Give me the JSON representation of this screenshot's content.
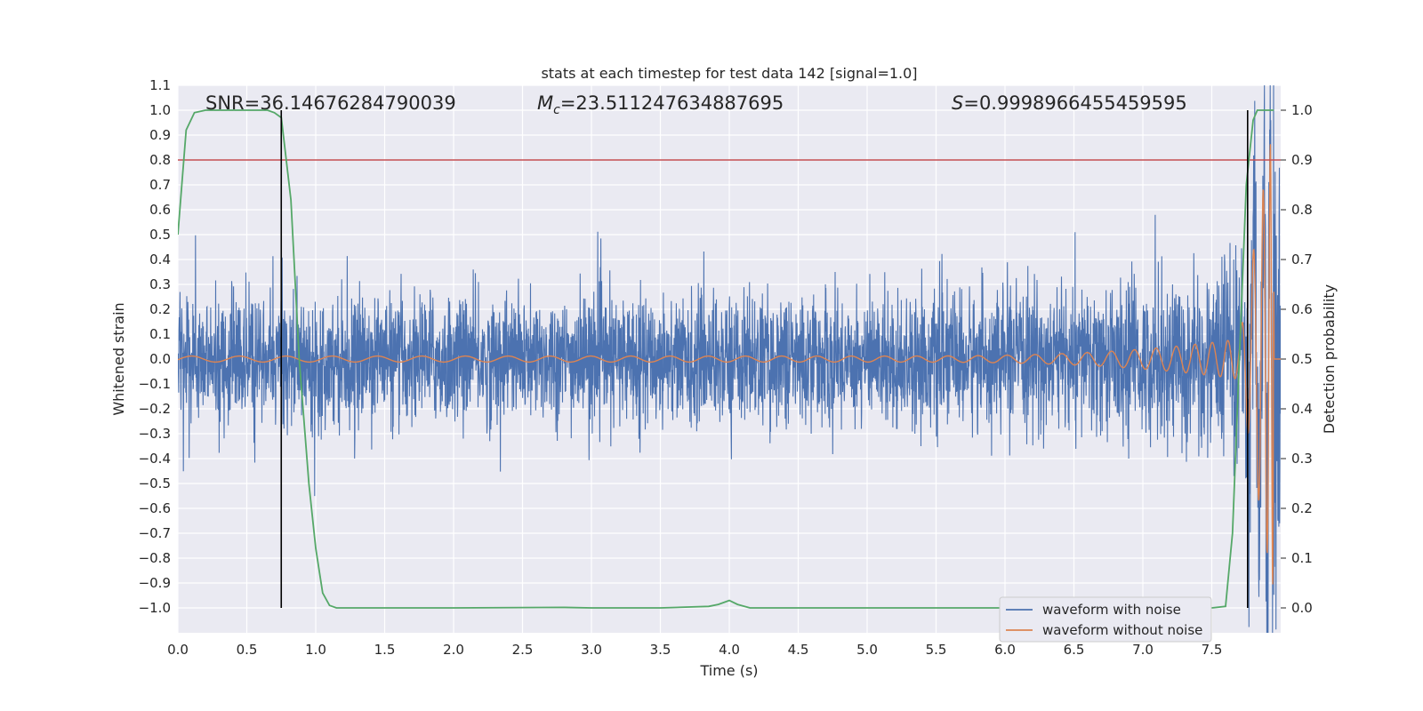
{
  "chart_data": {
    "type": "line",
    "title": "stats at each timestep for test data 142 [signal=1.0]",
    "xlabel": "Time (s)",
    "ylabel": "Whitened strain",
    "ylabel_right": "Detection probability",
    "xlim": [
      0.0,
      8.0
    ],
    "ylim": [
      -1.1,
      1.1
    ],
    "ylim_right": [
      -0.05,
      1.05
    ],
    "x_ticks": [
      "0.0",
      "0.5",
      "1.0",
      "1.5",
      "2.0",
      "2.5",
      "3.0",
      "3.5",
      "4.0",
      "4.5",
      "5.0",
      "5.5",
      "6.0",
      "6.5",
      "7.0",
      "7.5"
    ],
    "y_ticks": [
      "1.1",
      "1.0",
      "0.9",
      "0.8",
      "0.7",
      "0.6",
      "0.5",
      "0.4",
      "0.3",
      "0.2",
      "0.1",
      "0.0",
      "−0.1",
      "−0.2",
      "−0.3",
      "−0.4",
      "−0.5",
      "−0.6",
      "−0.7",
      "−0.8",
      "−0.9",
      "−1.0"
    ],
    "y_tick_values": [
      1.1,
      1.0,
      0.9,
      0.8,
      0.7,
      0.6,
      0.5,
      0.4,
      0.3,
      0.2,
      0.1,
      0.0,
      -0.1,
      -0.2,
      -0.3,
      -0.4,
      -0.5,
      -0.6,
      -0.7,
      -0.8,
      -0.9,
      -1.0
    ],
    "y_right_ticks": [
      "1.0",
      "0.9",
      "0.8",
      "0.7",
      "0.6",
      "0.5",
      "0.4",
      "0.3",
      "0.2",
      "0.1",
      "0.0"
    ],
    "y_right_tick_values": [
      1.0,
      0.9,
      0.8,
      0.7,
      0.6,
      0.5,
      0.4,
      0.3,
      0.2,
      0.1,
      0.0
    ],
    "annotations": {
      "snr": "SNR=36.14676284790039",
      "mc_symbol": "M",
      "mc_sub": "c",
      "mc_value": "=23.511247634887695",
      "s_symbol": "S",
      "s_value": "=0.9998966455459595"
    },
    "threshold": {
      "value": 0.9,
      "axis": "right",
      "color": "#c44e52"
    },
    "vertical_lines": [
      0.75,
      7.76
    ],
    "series": [
      {
        "name": "waveform with noise",
        "color": "#4c72b0",
        "kind": "noise",
        "amplitude_envelope": {
          "t": [
            0,
            6.0,
            7.0,
            7.5,
            7.8,
            7.95
          ],
          "amp": [
            0.22,
            0.24,
            0.27,
            0.33,
            0.45,
            0.95
          ]
        }
      },
      {
        "name": "waveform without noise",
        "color": "#dd8452",
        "kind": "chirp",
        "tc": 7.95,
        "f_at_1s": 3.0,
        "amp_at_1s": 0.005,
        "peak_amplitude": 1.0
      },
      {
        "name": "detection probability",
        "color": "#55a868",
        "axis": "right",
        "x": [
          0.0,
          0.06,
          0.12,
          0.2,
          0.3,
          0.5,
          0.65,
          0.7,
          0.75,
          0.82,
          0.88,
          0.95,
          1.0,
          1.05,
          1.1,
          1.15,
          1.2,
          2.0,
          2.8,
          3.0,
          3.5,
          3.85,
          3.92,
          4.0,
          4.06,
          4.15,
          4.3,
          5.0,
          6.0,
          7.0,
          7.5,
          7.6,
          7.65,
          7.7,
          7.75,
          7.8,
          7.83,
          7.88,
          7.95
        ],
        "y": [
          0.75,
          0.96,
          0.995,
          1.0,
          1.0,
          1.0,
          1.0,
          0.995,
          0.985,
          0.82,
          0.5,
          0.25,
          0.12,
          0.03,
          0.005,
          0.0,
          0.0,
          0.0,
          0.001,
          0.0,
          0.0,
          0.003,
          0.007,
          0.015,
          0.007,
          0.0,
          0.0,
          0.0,
          0.0,
          0.0,
          0.0,
          0.003,
          0.15,
          0.5,
          0.85,
          0.98,
          1.0,
          1.0,
          1.0
        ]
      }
    ],
    "legend": {
      "position": "lower-right",
      "entries": [
        {
          "label": "waveform with noise",
          "color": "#4c72b0"
        },
        {
          "label": "waveform without noise",
          "color": "#dd8452"
        }
      ]
    }
  }
}
